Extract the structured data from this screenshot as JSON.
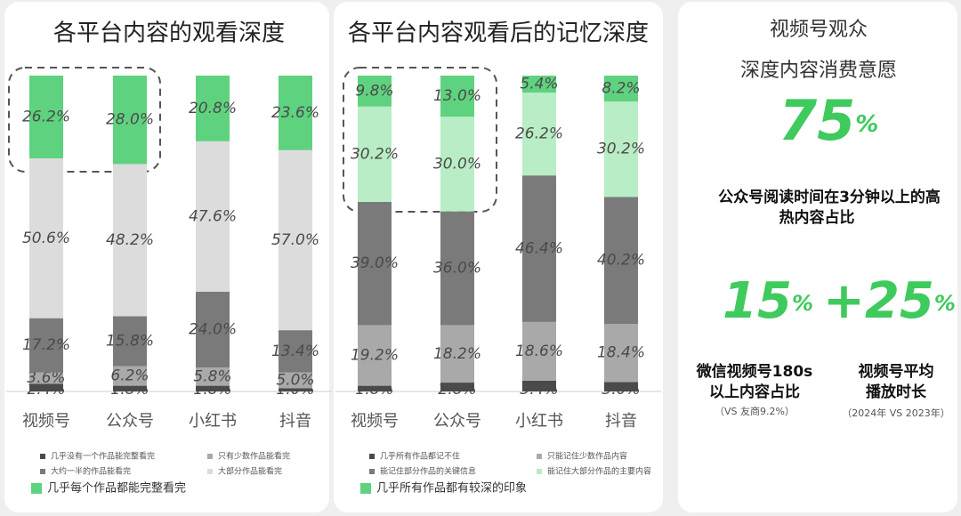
{
  "chart_data": [
    {
      "type": "stacked_bar",
      "title": "各平台内容的观看深度",
      "categories": [
        "视频号",
        "公众号",
        "小红书",
        "抖音"
      ],
      "series": [
        {
          "name": "几乎没有一个作品能完整看完",
          "color": "#4a4a4a",
          "values": [
            2.4,
            1.8,
            1.8,
            1.0
          ],
          "value_labels": [
            "2.4%",
            "1.8%",
            "1.8%",
            "1.0%"
          ]
        },
        {
          "name": "只有少数作品能看完",
          "color": "#a9a9a9",
          "values": [
            3.6,
            6.2,
            5.8,
            5.0
          ],
          "value_labels": [
            "3.6%",
            "6.2%",
            "5.8%",
            "5.0%"
          ]
        },
        {
          "name": "大约一半的作品能看完",
          "color": "#7a7a7a",
          "values": [
            17.2,
            15.8,
            24.0,
            13.4
          ],
          "value_labels": [
            "17.2%",
            "15.8%",
            "24.0%",
            "13.4%"
          ]
        },
        {
          "name": "大部分作品能看完",
          "color": "#dcdcdc",
          "values": [
            50.6,
            48.2,
            47.6,
            57.0
          ],
          "value_labels": [
            "50.6%",
            "48.2%",
            "47.6%",
            "57.0%"
          ]
        },
        {
          "name": "几乎每个作品都能完整看完",
          "color": "#5fd27f",
          "values": [
            26.2,
            28.0,
            20.8,
            23.6
          ],
          "value_labels": [
            "26.2%",
            "28.0%",
            "20.8%",
            "23.6%"
          ]
        }
      ]
    },
    {
      "type": "stacked_bar",
      "title": "各平台内容观看后的记忆深度",
      "categories": [
        "视频号",
        "公众号",
        "小红书",
        "抖音"
      ],
      "series": [
        {
          "name": "几乎所有作品都记不住",
          "color": "#4a4a4a",
          "values": [
            1.8,
            2.8,
            3.4,
            3.0
          ],
          "value_labels": [
            "1.8%",
            "2.8%",
            "3.4%",
            "3.0%"
          ]
        },
        {
          "name": "只能记住少数作品内容",
          "color": "#a9a9a9",
          "values": [
            19.2,
            18.2,
            18.6,
            18.4
          ],
          "value_labels": [
            "19.2%",
            "18.2%",
            "18.6%",
            "18.4%"
          ]
        },
        {
          "name": "能记住部分作品的关键信息",
          "color": "#7a7a7a",
          "values": [
            39.0,
            36.0,
            46.4,
            40.2
          ],
          "value_labels": [
            "39.0%",
            "36.0%",
            "46.4%",
            "40.2%"
          ]
        },
        {
          "name": "能记住大部分作品的主要内容",
          "color": "#b8edc6",
          "values": [
            30.2,
            30.0,
            26.2,
            30.2
          ],
          "value_labels": [
            "30.2%",
            "30.0%",
            "26.2%",
            "30.2%"
          ]
        },
        {
          "name": "几乎所有作品都有较深的印象",
          "color": "#5fd27f",
          "values": [
            9.8,
            13.0,
            5.4,
            8.2
          ],
          "value_labels": [
            "9.8%",
            "13.0%",
            "5.4%",
            "8.2%"
          ]
        }
      ]
    }
  ],
  "stats": {
    "title": [
      "视频号观众",
      "深度内容消费意愿"
    ],
    "items": [
      {
        "number": "75",
        "unit": "%",
        "desc": [
          "公众号阅读时间在3分钟以上的高",
          "热内容占比"
        ]
      },
      {
        "number": "15",
        "unit": "%",
        "desc": [
          "微信视频号180s",
          "以上内容占比"
        ],
        "note": "（VS 友商9.2%）"
      },
      {
        "number": "+25",
        "unit": "%",
        "desc": [
          "视频号平均",
          "播放时长"
        ],
        "note": "（2024年 VS 2023年）"
      }
    ]
  }
}
